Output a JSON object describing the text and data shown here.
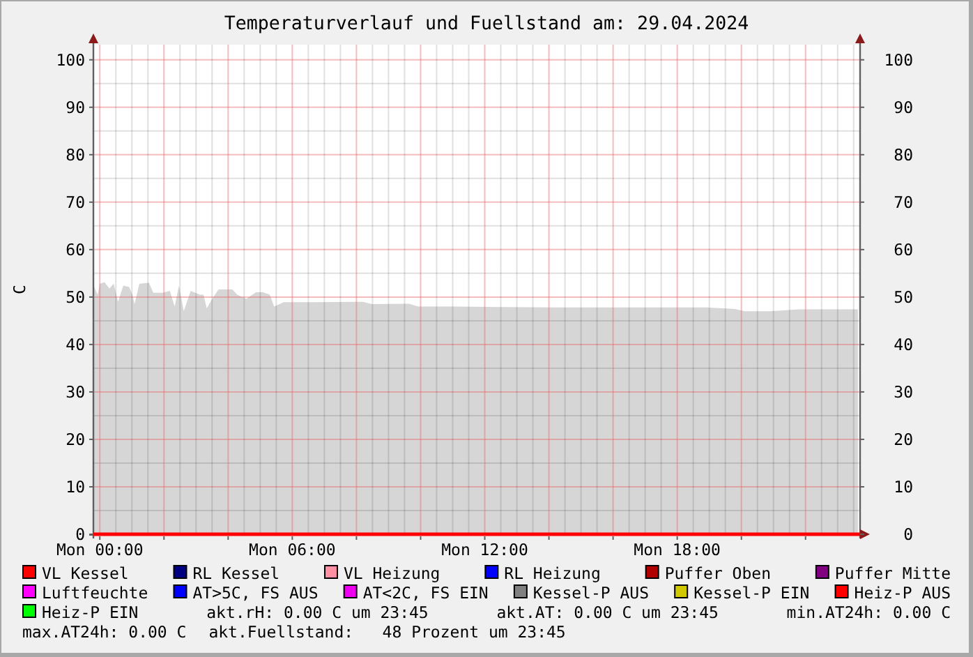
{
  "chart_data": {
    "type": "line",
    "title": "Temperaturverlauf und Fuellstand am: 29.04.2024",
    "ylabel": "C",
    "xlim": [
      "2024-04-28T23:48",
      "2024-04-29T23:42"
    ],
    "xticks": [
      {
        "value": "2024-04-29T00:00",
        "label": "Mon 00:00"
      },
      {
        "value": "2024-04-29T02:00",
        "label": null
      },
      {
        "value": "2024-04-29T04:00",
        "label": null
      },
      {
        "value": "2024-04-29T06:00",
        "label": "Mon 06:00"
      },
      {
        "value": "2024-04-29T08:00",
        "label": null
      },
      {
        "value": "2024-04-29T10:00",
        "label": null
      },
      {
        "value": "2024-04-29T12:00",
        "label": "Mon 12:00"
      },
      {
        "value": "2024-04-29T14:00",
        "label": null
      },
      {
        "value": "2024-04-29T16:00",
        "label": null
      },
      {
        "value": "2024-04-29T18:00",
        "label": "Mon 18:00"
      },
      {
        "value": "2024-04-29T20:00",
        "label": null
      },
      {
        "value": "2024-04-29T22:00",
        "label": null
      }
    ],
    "ylim": [
      0,
      103.2
    ],
    "yticks": [
      0,
      10,
      20,
      30,
      40,
      50,
      60,
      70,
      80,
      90,
      100
    ],
    "y2lim": [
      0,
      103.2
    ],
    "y2ticks": [
      0,
      10,
      20,
      30,
      40,
      50,
      60,
      70,
      80,
      90,
      100
    ],
    "grid": true,
    "legend": "bottom",
    "series": [
      {
        "type": "area",
        "color": "#d6d6d6",
        "x": [
          "2024-04-28T23:48",
          "2024-04-28T23:56",
          "2024-04-29T00:00",
          "2024-04-29T00:09",
          "2024-04-29T00:18",
          "2024-04-29T00:26",
          "2024-04-29T00:34",
          "2024-04-29T00:44",
          "2024-04-29T00:55",
          "2024-04-29T01:01",
          "2024-04-29T01:05",
          "2024-04-29T01:14",
          "2024-04-29T01:32",
          "2024-04-29T01:40",
          "2024-04-29T01:58",
          "2024-04-29T02:11",
          "2024-04-29T02:20",
          "2024-04-29T02:28",
          "2024-04-29T02:37",
          "2024-04-29T02:50",
          "2024-04-29T03:07",
          "2024-04-29T03:14",
          "2024-04-29T03:20",
          "2024-04-29T03:29",
          "2024-04-29T03:42",
          "2024-04-29T04:08",
          "2024-04-29T04:17",
          "2024-04-29T04:34",
          "2024-04-29T04:52",
          "2024-04-29T05:05",
          "2024-04-29T05:18",
          "2024-04-29T05:26",
          "2024-04-29T05:44",
          "2024-04-29T06:45",
          "2024-04-29T08:12",
          "2024-04-29T08:29",
          "2024-04-29T09:38",
          "2024-04-29T09:56",
          "2024-04-29T11:06",
          "2024-04-29T12:32",
          "2024-04-29T14:00",
          "2024-04-29T16:00",
          "2024-04-29T18:54",
          "2024-04-29T19:48",
          "2024-04-29T20:06",
          "2024-04-29T20:54",
          "2024-04-29T21:48",
          "2024-04-29T23:38"
        ],
        "values": [
          52.5,
          50.5,
          52.8,
          53.1,
          51.8,
          52.8,
          49.0,
          52.4,
          52.1,
          50.5,
          48.5,
          52.8,
          53.0,
          50.9,
          50.9,
          51.3,
          48.0,
          52.4,
          47.0,
          51.3,
          50.5,
          50.5,
          47.6,
          49.4,
          51.6,
          51.6,
          50.5,
          49.6,
          51.0,
          51.0,
          50.5,
          48.0,
          48.9,
          48.9,
          49.0,
          48.5,
          48.6,
          48.0,
          48.0,
          47.9,
          47.8,
          47.8,
          47.8,
          47.5,
          47.0,
          47.0,
          47.4,
          47.4
        ]
      },
      {
        "name": "VL Kessel",
        "color": "#ff0000",
        "x": [
          "2024-04-28T23:48",
          "2024-04-29T23:42"
        ],
        "values": [
          0,
          0
        ]
      },
      {
        "name": "RL Kessel",
        "color": "#000080"
      },
      {
        "name": "VL Heizung",
        "color": "#ff8fa3"
      },
      {
        "name": "RL Heizung",
        "color": "#0000ff"
      },
      {
        "name": "Puffer Oben",
        "color": "#b00000"
      },
      {
        "name": "Puffer Mitte",
        "color": "#800080"
      },
      {
        "name": "Luftfeuchte",
        "color": "#ff00ff"
      },
      {
        "name": "AT>5C, FS AUS",
        "color": "#0000ff"
      },
      {
        "name": "AT<2C, FS EIN",
        "color": "#f000f0"
      },
      {
        "name": "Kessel-P AUS",
        "color": "#808080"
      },
      {
        "name": "Kessel-P EIN",
        "color": "#d0c800"
      },
      {
        "name": "Heiz-P AUS",
        "color": "#ff0000"
      },
      {
        "name": "Heiz-P EIN",
        "color": "#00ff00"
      }
    ],
    "annotations": [
      "akt.rH: 0.00 C um 23:45",
      "akt.AT: 0.00 C um 23:45",
      "min.AT24h: 0.00 C",
      "max.AT24h: 0.00 C",
      "akt.Fuellstand:   48 Prozent um 23:45"
    ]
  }
}
